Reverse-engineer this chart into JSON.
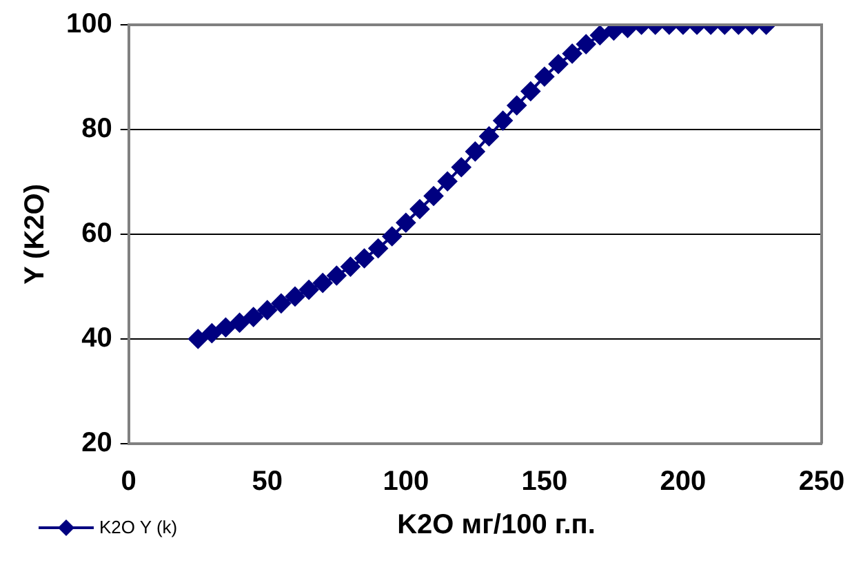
{
  "chart_data": {
    "type": "line",
    "xlabel": "K2O мг/100 г.п.",
    "ylabel": "Y (K2O)",
    "x": [
      25,
      30,
      35,
      40,
      45,
      50,
      55,
      60,
      65,
      70,
      75,
      80,
      85,
      90,
      95,
      100,
      105,
      110,
      115,
      120,
      125,
      130,
      135,
      140,
      145,
      150,
      155,
      160,
      165,
      170,
      175,
      180,
      185,
      190,
      195,
      200,
      205,
      210,
      215,
      220,
      225,
      230
    ],
    "series": [
      {
        "name": "K2O Y (k)",
        "color": "#000080",
        "values": [
          40,
          41.1,
          42.2,
          43.1,
          44.2,
          45.5,
          46.8,
          48.1,
          49.4,
          50.7,
          52.1,
          53.8,
          55.4,
          57.3,
          59.6,
          62.2,
          64.8,
          67.3,
          70.1,
          72.8,
          75.8,
          78.7,
          81.7,
          84.6,
          87.3,
          90.1,
          92.5,
          94.5,
          96.3,
          98,
          98.9,
          99.4,
          100,
          100,
          100,
          100,
          100,
          100,
          100,
          100,
          100,
          100
        ]
      }
    ],
    "xlim": [
      0,
      250
    ],
    "xticks": [
      0,
      50,
      100,
      150,
      200,
      250
    ],
    "ylim": [
      20,
      100
    ],
    "yticks": [
      20,
      40,
      60,
      80,
      100
    ],
    "grid": "y",
    "legend": "bottom left",
    "marker": "diamond",
    "line_style": "solid"
  }
}
